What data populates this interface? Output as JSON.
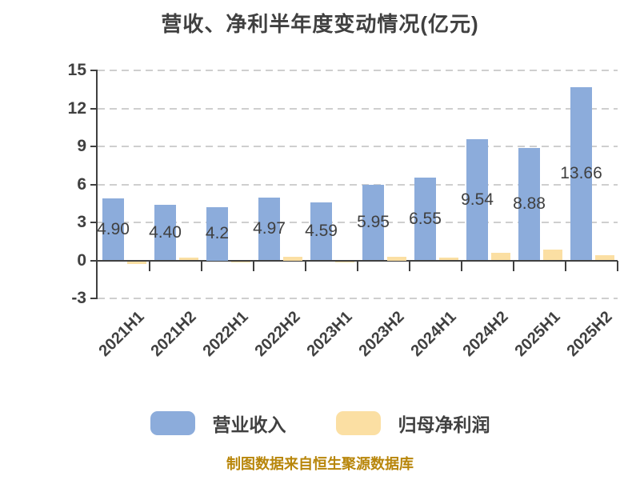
{
  "title": "营收、净利半年度变动情况(亿元)",
  "footer": "制图数据来自恒生聚源数据库",
  "colors": {
    "revenue_bar": "#8CACDB",
    "profit_bar": "#FBDFA3",
    "axis": "#404040",
    "gridline": "#CFCFCF",
    "text": "#404040",
    "footer_text": "#B8860B"
  },
  "legend": {
    "items": [
      {
        "label": "营业收入",
        "color_key": "revenue_bar"
      },
      {
        "label": "归母净利润",
        "color_key": "profit_bar"
      }
    ]
  },
  "chart_data": {
    "type": "bar",
    "title": "营收、净利半年度变动情况(亿元)",
    "categories": [
      "2021H1",
      "2021H2",
      "2022H1",
      "2022H2",
      "2023H1",
      "2023H2",
      "2024H1",
      "2024H2",
      "2025H1",
      "2025H2"
    ],
    "series": [
      {
        "name": "营业收入",
        "values": [
          4.9,
          4.4,
          4.2,
          4.97,
          4.59,
          5.95,
          6.55,
          9.54,
          8.88,
          13.66
        ],
        "labels": [
          "4.90",
          "4.40",
          "4.2",
          "4.97",
          "4.59",
          "5.95",
          "6.55",
          "9.54",
          "8.88",
          "13.66"
        ],
        "labels_shown_on_bars": true
      },
      {
        "name": "归母净利润",
        "values": [
          -0.2,
          0.25,
          -0.12,
          0.3,
          -0.1,
          0.3,
          0.2,
          0.63,
          0.85,
          0.4
        ],
        "labels_shown_on_bars": false,
        "note": "values estimated from bar heights; no data labels visible"
      }
    ],
    "ylim": [
      -3,
      15
    ],
    "y_ticks": [
      15,
      12,
      9,
      6,
      3,
      0,
      -3
    ],
    "grid": "horizontal dashed",
    "legend_position": "bottom",
    "x_label_rotation_deg": -45
  }
}
